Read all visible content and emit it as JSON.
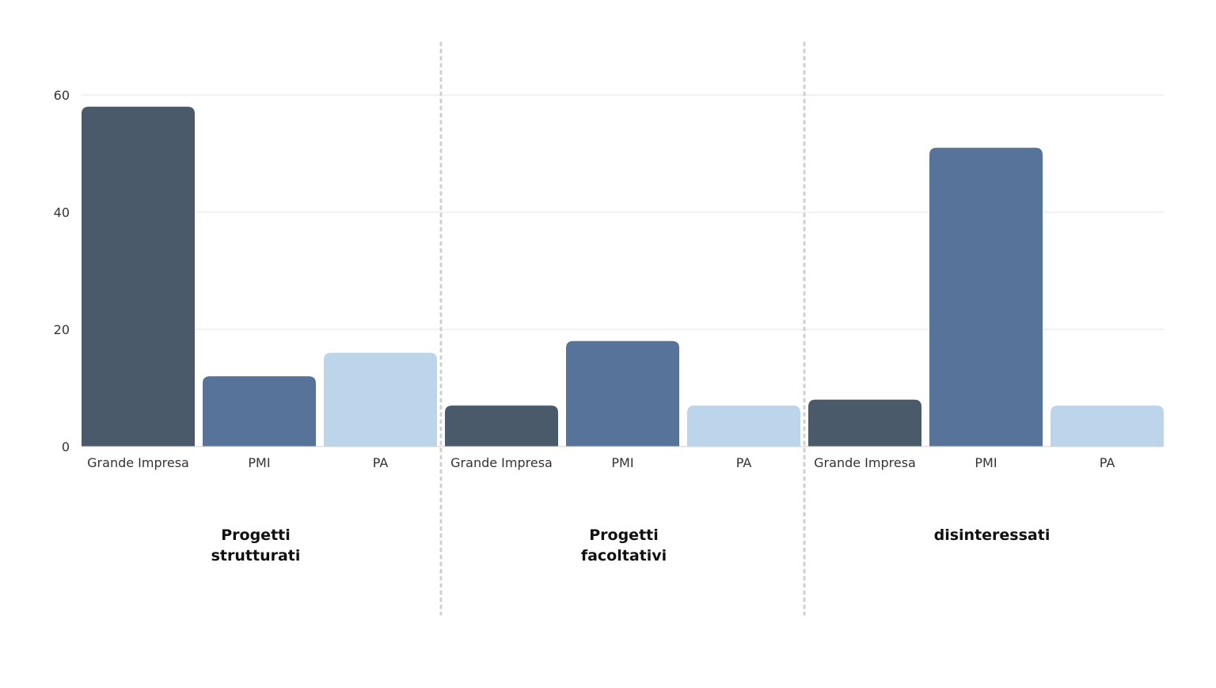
{
  "chart_data": {
    "type": "bar",
    "groups": [
      "Progetti strutturati",
      "Progetti facoltativi",
      "disinteressati"
    ],
    "group_label_lines": [
      [
        "Progetti",
        "strutturati"
      ],
      [
        "Progetti",
        "facoltativi"
      ],
      [
        "disinteressati"
      ]
    ],
    "categories": [
      "Grande Impresa",
      "PMI",
      "PA"
    ],
    "values": [
      [
        58,
        12,
        16
      ],
      [
        7,
        18,
        7
      ],
      [
        8,
        51,
        7
      ]
    ],
    "yticks": [
      0,
      20,
      40,
      60
    ],
    "ylim": [
      0,
      60
    ],
    "grid": true,
    "title": "",
    "xlabel": "",
    "ylabel": "",
    "colors": {
      "Grande Impresa": "#4a5a6a",
      "PMI": "#587399",
      "PA": "#bdd5ea"
    }
  }
}
